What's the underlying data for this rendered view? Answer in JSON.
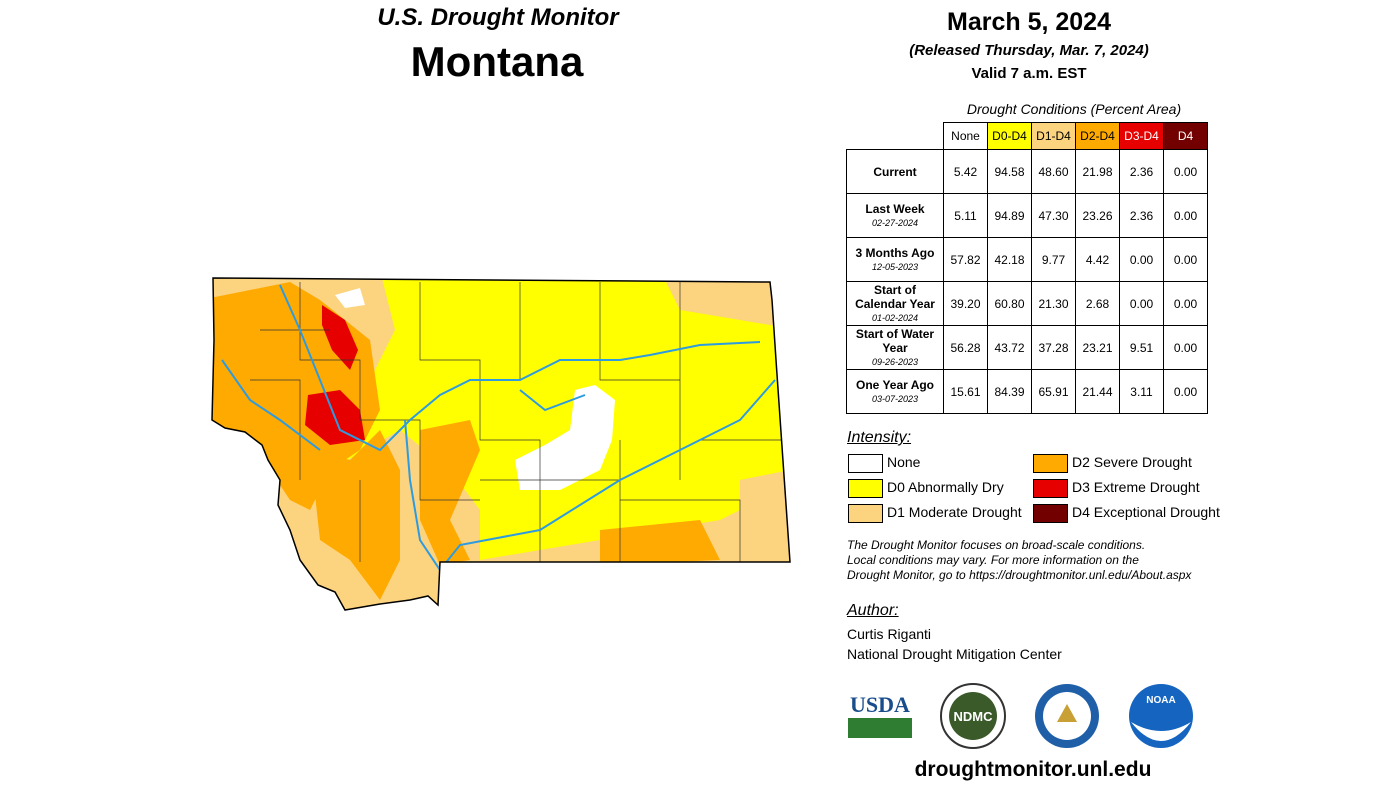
{
  "header": {
    "title": "U.S. Drought Monitor",
    "state": "Montana",
    "date": "March 5, 2024",
    "released": "(Released Thursday, Mar. 7, 2024)",
    "valid": "Valid 7 a.m. EST"
  },
  "table": {
    "caption": "Drought Conditions (Percent Area)",
    "columns": [
      {
        "label": "None",
        "color": "#ffffff",
        "text_color": "#000000"
      },
      {
        "label": "D0-D4",
        "color": "#ffff00",
        "text_color": "#000000"
      },
      {
        "label": "D1-D4",
        "color": "#fcd37f",
        "text_color": "#000000"
      },
      {
        "label": "D2-D4",
        "color": "#ffaa00",
        "text_color": "#000000"
      },
      {
        "label": "D3-D4",
        "color": "#e60000",
        "text_color": "#ffffff"
      },
      {
        "label": "D4",
        "color": "#730000",
        "text_color": "#ffffff"
      }
    ],
    "rows": [
      {
        "label": "Current",
        "cells": [
          "5.42",
          "94.58",
          "48.60",
          "21.98",
          "2.36",
          "0.00"
        ]
      },
      {
        "label": "Last Week",
        "date": "02-27-2024",
        "cells": [
          "5.11",
          "94.89",
          "47.30",
          "23.26",
          "2.36",
          "0.00"
        ]
      },
      {
        "label": "3 Months Ago",
        "date": "12-05-2023",
        "cells": [
          "57.82",
          "42.18",
          "9.77",
          "4.42",
          "0.00",
          "0.00"
        ]
      },
      {
        "label": "Start of Calendar Year",
        "date": "01-02-2024",
        "cells": [
          "39.20",
          "60.80",
          "21.30",
          "2.68",
          "0.00",
          "0.00"
        ]
      },
      {
        "label": "Start of Water Year",
        "date": "09-26-2023",
        "cells": [
          "56.28",
          "43.72",
          "37.28",
          "23.21",
          "9.51",
          "0.00"
        ]
      },
      {
        "label": "One Year Ago",
        "date": "03-07-2023",
        "cells": [
          "15.61",
          "84.39",
          "65.91",
          "21.44",
          "3.11",
          "0.00"
        ]
      }
    ]
  },
  "legend": {
    "title": "Intensity:",
    "items": [
      {
        "label": "None",
        "color": "#ffffff"
      },
      {
        "label": "D0 Abnormally Dry",
        "color": "#ffff00"
      },
      {
        "label": "D1 Moderate Drought",
        "color": "#fcd37f"
      },
      {
        "label": "D2 Severe Drought",
        "color": "#ffaa00"
      },
      {
        "label": "D3 Extreme Drought",
        "color": "#e60000"
      },
      {
        "label": "D4 Exceptional Drought",
        "color": "#730000"
      }
    ]
  },
  "note": [
    "The Drought Monitor focuses on broad-scale conditions.",
    "Local conditions may vary. For more information on the",
    "Drought Monitor, go to https://droughtmonitor.unl.edu/About.aspx"
  ],
  "author": {
    "title": "Author:",
    "lines": [
      "Curtis Riganti",
      "National Drought Mitigation Center"
    ]
  },
  "logos": {
    "usda": "USDA",
    "ndmc": "NDMC",
    "noaa": "NOAA"
  },
  "footer": {
    "url": "droughtmonitor.unl.edu"
  }
}
